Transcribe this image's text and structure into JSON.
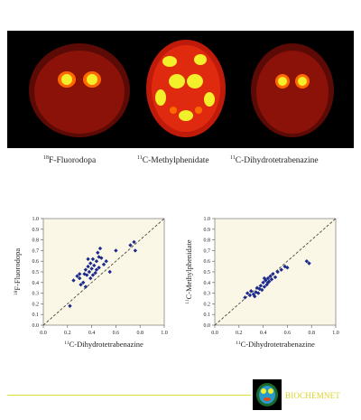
{
  "figure": {
    "scans": [
      {
        "iso_mass": "18",
        "caption": "F-Fluorodopa"
      },
      {
        "iso_mass": "11",
        "caption": "C-Methylphenidate"
      },
      {
        "iso_mass": "11",
        "caption": "C-Dihydrotetrabenazine"
      }
    ],
    "colors": {
      "background": "#000000",
      "brain_dark": "#7a0d06",
      "brain_mid": "#c01a0a",
      "hot": "#f2f02a",
      "warm": "#ff6a00",
      "plot_bg": "#fbf7e6",
      "marker": "#1c2a8c",
      "footer": "#d8d426"
    }
  },
  "footer": {
    "logo_text": "BIOCHEMNET"
  },
  "chart_data": [
    {
      "type": "scatter",
      "x_iso": "11",
      "xlabel": "C-Dihydrotetrabenazine",
      "y_iso": "18",
      "ylabel": "F-Fluorodopa",
      "xlim": [
        0.0,
        1.0
      ],
      "ylim": [
        0.0,
        1.0
      ],
      "x_ticks": [
        "0.0",
        "0.2",
        "0.4",
        "0.6",
        "0.8",
        "1.0"
      ],
      "y_ticks": [
        "0.0",
        "0.1",
        "0.2",
        "0.3",
        "0.4",
        "0.5",
        "0.6",
        "0.7",
        "0.8",
        "0.9",
        "1.0"
      ],
      "identity_line": true,
      "points": [
        [
          0.22,
          0.18
        ],
        [
          0.25,
          0.42
        ],
        [
          0.28,
          0.46
        ],
        [
          0.3,
          0.44
        ],
        [
          0.31,
          0.38
        ],
        [
          0.33,
          0.4
        ],
        [
          0.34,
          0.48
        ],
        [
          0.35,
          0.52
        ],
        [
          0.36,
          0.47
        ],
        [
          0.37,
          0.55
        ],
        [
          0.38,
          0.5
        ],
        [
          0.39,
          0.58
        ],
        [
          0.4,
          0.53
        ],
        [
          0.41,
          0.62
        ],
        [
          0.42,
          0.56
        ],
        [
          0.43,
          0.49
        ],
        [
          0.44,
          0.6
        ],
        [
          0.45,
          0.68
        ],
        [
          0.46,
          0.54
        ],
        [
          0.47,
          0.72
        ],
        [
          0.48,
          0.63
        ],
        [
          0.5,
          0.57
        ],
        [
          0.52,
          0.6
        ],
        [
          0.55,
          0.5
        ],
        [
          0.6,
          0.7
        ],
        [
          0.72,
          0.75
        ],
        [
          0.75,
          0.78
        ],
        [
          0.76,
          0.7
        ],
        [
          0.39,
          0.44
        ],
        [
          0.35,
          0.36
        ],
        [
          0.3,
          0.48
        ],
        [
          0.44,
          0.52
        ],
        [
          0.41,
          0.47
        ],
        [
          0.37,
          0.62
        ],
        [
          0.46,
          0.64
        ]
      ]
    },
    {
      "type": "scatter",
      "x_iso": "11",
      "xlabel": "C-Dihydrotetrabenazine",
      "y_iso": "11",
      "ylabel": "C-Methylphenidate",
      "xlim": [
        0.0,
        1.0
      ],
      "ylim": [
        0.0,
        1.0
      ],
      "x_ticks": [
        "0.0",
        "0.2",
        "0.4",
        "0.6",
        "0.8",
        "1.0"
      ],
      "y_ticks": [
        "0.0",
        "0.1",
        "0.2",
        "0.3",
        "0.4",
        "0.5",
        "0.6",
        "0.7",
        "0.8",
        "0.9",
        "1.0"
      ],
      "identity_line": true,
      "points": [
        [
          0.25,
          0.26
        ],
        [
          0.27,
          0.3
        ],
        [
          0.29,
          0.28
        ],
        [
          0.3,
          0.32
        ],
        [
          0.32,
          0.29
        ],
        [
          0.34,
          0.31
        ],
        [
          0.35,
          0.35
        ],
        [
          0.36,
          0.3
        ],
        [
          0.38,
          0.37
        ],
        [
          0.39,
          0.33
        ],
        [
          0.4,
          0.4
        ],
        [
          0.41,
          0.36
        ],
        [
          0.42,
          0.42
        ],
        [
          0.43,
          0.38
        ],
        [
          0.44,
          0.44
        ],
        [
          0.45,
          0.41
        ],
        [
          0.46,
          0.46
        ],
        [
          0.47,
          0.43
        ],
        [
          0.48,
          0.48
        ],
        [
          0.5,
          0.45
        ],
        [
          0.52,
          0.5
        ],
        [
          0.55,
          0.52
        ],
        [
          0.58,
          0.55
        ],
        [
          0.6,
          0.54
        ],
        [
          0.76,
          0.6
        ],
        [
          0.78,
          0.58
        ],
        [
          0.37,
          0.34
        ],
        [
          0.33,
          0.27
        ],
        [
          0.41,
          0.44
        ],
        [
          0.44,
          0.4
        ]
      ]
    }
  ]
}
